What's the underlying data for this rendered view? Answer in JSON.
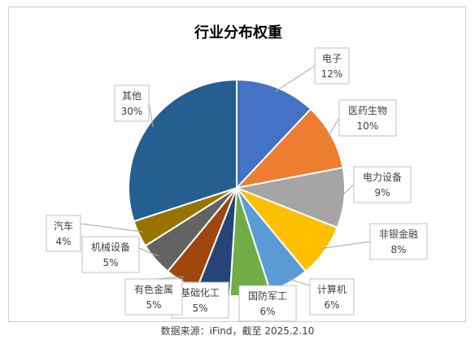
{
  "chart_data": {
    "type": "pie",
    "title": "行业分布权重",
    "slices": [
      {
        "label": "电子",
        "value": 12,
        "value_label": "12%",
        "color": "#4472C4"
      },
      {
        "label": "医药生物",
        "value": 10,
        "value_label": "10%",
        "color": "#ED7D31"
      },
      {
        "label": "电力设备",
        "value": 9,
        "value_label": "9%",
        "color": "#A5A5A5"
      },
      {
        "label": "非银金融",
        "value": 8,
        "value_label": "8%",
        "color": "#FFC000"
      },
      {
        "label": "计算机",
        "value": 6,
        "value_label": "6%",
        "color": "#5B9BD5"
      },
      {
        "label": "国防军工",
        "value": 6,
        "value_label": "6%",
        "color": "#70AD47"
      },
      {
        "label": "基础化工",
        "value": 5,
        "value_label": "5%",
        "color": "#264478"
      },
      {
        "label": "有色金属",
        "value": 5,
        "value_label": "5%",
        "color": "#9E480E"
      },
      {
        "label": "机械设备",
        "value": 5,
        "value_label": "5%",
        "color": "#636363"
      },
      {
        "label": "汽车",
        "value": 4,
        "value_label": "4%",
        "color": "#997300"
      },
      {
        "label": "其他",
        "value": 30,
        "value_label": "30%",
        "color": "#255E91"
      }
    ]
  },
  "source_note": "数据来源：iFind，截至 2025.2.10"
}
